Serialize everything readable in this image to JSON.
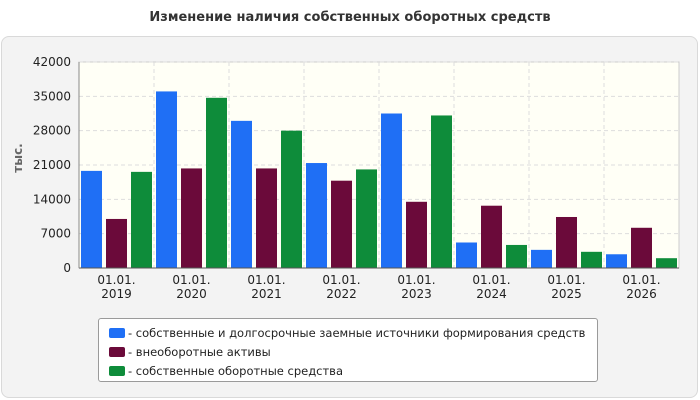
{
  "chart_data": {
    "type": "bar",
    "title": "Изменение наличия собственных оборотных средств",
    "ylabel": "тыс.",
    "ylim": [
      0,
      42000
    ],
    "yticks": [
      "0",
      "7000",
      "14000",
      "21000",
      "28000",
      "35000",
      "42000"
    ],
    "categories": [
      [
        "01.01.",
        "2019"
      ],
      [
        "01.01.",
        "2020"
      ],
      [
        "01.01.",
        "2021"
      ],
      [
        "01.01.",
        "2022"
      ],
      [
        "01.01.",
        "2023"
      ],
      [
        "01.01.",
        "2024"
      ],
      [
        "01.01.",
        "2025"
      ],
      [
        "01.01.",
        "2026"
      ]
    ],
    "series": [
      {
        "name": "- собственные и долгосрочные заемные источники формирования средств",
        "color": "#1f6ff5",
        "values": [
          19800,
          36000,
          30000,
          21400,
          31500,
          5200,
          3700,
          2800
        ]
      },
      {
        "name": "- внеоборотные активы",
        "color": "#6b0a3a",
        "values": [
          10000,
          20300,
          20300,
          17800,
          13500,
          12700,
          10400,
          8200
        ]
      },
      {
        "name": "- собственные оборотные средства",
        "color": "#0e8c3a",
        "values": [
          19600,
          34700,
          28000,
          20100,
          31100,
          4700,
          3300,
          2000
        ]
      }
    ],
    "grid": true,
    "legend_position": "bottom"
  }
}
